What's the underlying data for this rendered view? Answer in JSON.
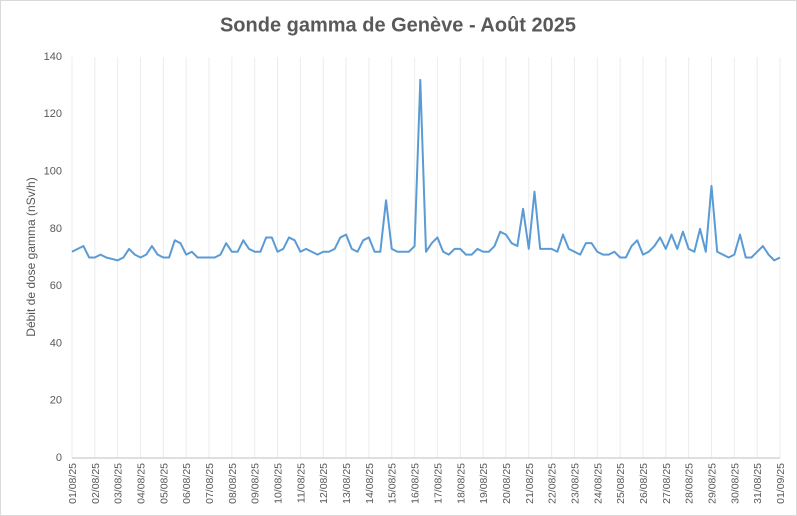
{
  "chart_data": {
    "type": "line",
    "title": "Sonde gamma de Genève - Août 2025",
    "y_label": "Débit de dose gamma (nSv/h)",
    "categories": [
      "01/08/25",
      null,
      null,
      null,
      "02/08/25",
      null,
      null,
      null,
      "03/08/25",
      null,
      null,
      null,
      "04/08/25",
      null,
      null,
      null,
      "05/08/25",
      null,
      null,
      null,
      "06/08/25",
      null,
      null,
      null,
      "07/08/25",
      null,
      null,
      null,
      "08/08/25",
      null,
      null,
      null,
      "09/08/25",
      null,
      null,
      null,
      "10/08/25",
      null,
      null,
      null,
      "11/08/25",
      null,
      null,
      null,
      "12/08/25",
      null,
      null,
      null,
      "13/08/25",
      null,
      null,
      null,
      "14/08/25",
      null,
      null,
      null,
      "15/08/25",
      null,
      null,
      null,
      "16/08/25",
      null,
      null,
      null,
      "17/08/25",
      null,
      null,
      null,
      "18/08/25",
      null,
      null,
      null,
      "19/08/25",
      null,
      null,
      null,
      "20/08/25",
      null,
      null,
      null,
      "21/08/25",
      null,
      null,
      null,
      "22/08/25",
      null,
      null,
      null,
      "23/08/25",
      null,
      null,
      null,
      "24/08/25",
      null,
      null,
      null,
      "25/08/25",
      null,
      null,
      null,
      "26/08/25",
      null,
      null,
      null,
      "27/08/25",
      null,
      null,
      null,
      "28/08/25",
      null,
      null,
      null,
      "29/08/25",
      null,
      null,
      null,
      "30/08/25",
      null,
      null,
      null,
      "31/08/25",
      null,
      null,
      null,
      "01/09/25"
    ],
    "values": [
      72,
      73,
      74,
      70,
      70,
      71,
      70,
      69.5,
      69,
      70,
      73,
      71,
      70,
      71,
      74,
      71,
      70,
      70,
      76,
      75,
      71,
      72,
      70,
      70,
      70,
      70,
      71,
      75,
      72,
      72,
      76,
      73,
      72,
      72,
      77,
      77,
      72,
      73,
      77,
      76,
      72,
      73,
      72,
      71,
      72,
      72,
      73,
      77,
      78,
      73,
      72,
      76,
      77,
      72,
      72,
      90,
      73,
      72,
      72,
      72,
      74,
      132,
      72,
      75,
      77,
      72,
      71,
      73,
      73,
      71,
      71,
      73,
      72,
      72,
      74,
      79,
      78,
      75,
      74,
      87,
      73,
      93,
      73,
      73,
      73,
      72,
      78,
      73,
      72,
      71,
      75,
      75,
      72,
      71,
      71,
      72,
      70,
      70,
      74,
      76,
      71,
      72,
      74,
      77,
      73,
      78,
      73,
      79,
      73,
      72,
      80,
      72,
      95,
      72,
      71,
      70,
      71,
      78,
      70,
      70,
      72,
      74,
      71,
      69,
      70
    ],
    "color": "#5b9bd5",
    "ylim": [
      0,
      140
    ],
    "yticks": [
      0,
      20,
      40,
      60,
      80,
      100,
      120,
      140
    ],
    "grid": true
  }
}
